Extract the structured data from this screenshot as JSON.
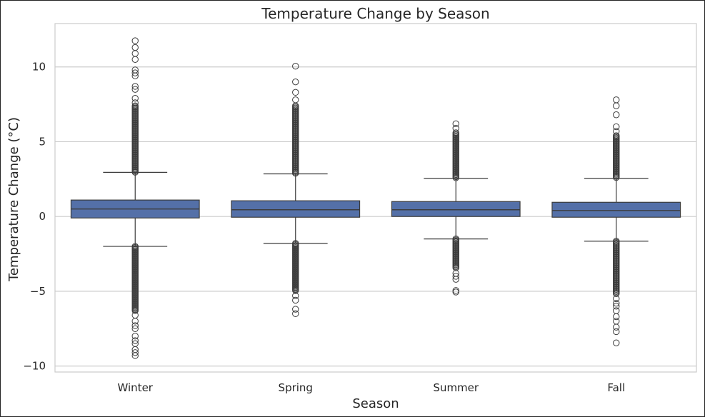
{
  "chart_data": {
    "type": "box",
    "title": "Temperature Change by Season",
    "xlabel": "Season",
    "ylabel": "Temperature Change (°C)",
    "ylim": [
      -10.4,
      12.9
    ],
    "yticks": [
      -10,
      -5,
      0,
      5,
      10
    ],
    "ytick_labels": [
      "−10",
      "−5",
      "0",
      "5",
      "10"
    ],
    "grid": "horizontal",
    "box_color": "#5470a8",
    "categories": [
      "Winter",
      "Spring",
      "Summer",
      "Fall"
    ],
    "boxes": [
      {
        "category": "Winter",
        "q1": -0.1,
        "median": 0.5,
        "q3": 1.1,
        "whisker_low": -2.0,
        "whisker_high": 2.95,
        "outlier_range_high": [
          2.95,
          7.4
        ],
        "outlier_range_low": [
          -6.3,
          -2.0
        ],
        "outliers_high": [
          7.6,
          7.9,
          8.5,
          8.7,
          9.4,
          9.6,
          9.8,
          10.5,
          10.9,
          11.3,
          11.75
        ],
        "outliers_low": [
          -6.6,
          -7.0,
          -7.3,
          -7.5,
          -8.0,
          -8.3,
          -8.5,
          -8.9,
          -9.1,
          -9.3
        ]
      },
      {
        "category": "Spring",
        "q1": -0.05,
        "median": 0.45,
        "q3": 1.05,
        "whisker_low": -1.8,
        "whisker_high": 2.85,
        "outlier_range_high": [
          2.85,
          7.4
        ],
        "outlier_range_low": [
          -5.0,
          -1.8
        ],
        "outliers_high": [
          7.8,
          8.3,
          9.0,
          10.05
        ],
        "outliers_low": [
          -5.3,
          -5.6,
          -6.2,
          -6.5
        ]
      },
      {
        "category": "Summer",
        "q1": 0.0,
        "median": 0.45,
        "q3": 1.0,
        "whisker_low": -1.5,
        "whisker_high": 2.55,
        "outlier_range_high": [
          2.55,
          5.6
        ],
        "outlier_range_low": [
          -3.5,
          -1.5
        ],
        "outliers_high": [
          5.9,
          6.2
        ],
        "outliers_low": [
          -3.8,
          -4.0,
          -4.2,
          -4.95,
          -5.05
        ]
      },
      {
        "category": "Fall",
        "q1": -0.05,
        "median": 0.4,
        "q3": 0.95,
        "whisker_low": -1.65,
        "whisker_high": 2.55,
        "outlier_range_high": [
          2.55,
          5.4
        ],
        "outlier_range_low": [
          -5.2,
          -1.65
        ],
        "outliers_high": [
          5.7,
          6.0,
          6.8,
          7.4,
          7.8
        ],
        "outliers_low": [
          -5.5,
          -5.8,
          -6.0,
          -6.3,
          -6.7,
          -7.0,
          -7.4,
          -7.7,
          -8.45
        ]
      }
    ]
  }
}
